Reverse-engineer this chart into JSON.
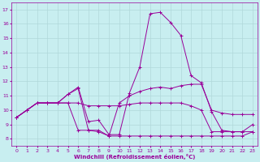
{
  "xlabel": "Windchill (Refroidissement éolien,°C)",
  "bg_color": "#c8eef0",
  "line_color": "#990099",
  "grid_color": "#b0d8da",
  "xlim": [
    -0.5,
    23.5
  ],
  "ylim": [
    7.5,
    17.5
  ],
  "xticks": [
    0,
    1,
    2,
    3,
    4,
    5,
    6,
    7,
    8,
    9,
    10,
    11,
    12,
    13,
    14,
    15,
    16,
    17,
    18,
    19,
    20,
    21,
    22,
    23
  ],
  "yticks": [
    8,
    9,
    10,
    11,
    12,
    13,
    14,
    15,
    16,
    17
  ],
  "series": [
    [
      9.5,
      10.0,
      10.5,
      10.5,
      10.5,
      11.1,
      11.6,
      9.2,
      9.3,
      8.3,
      8.3,
      11.2,
      13.0,
      16.7,
      16.8,
      16.1,
      15.2,
      12.4,
      11.9,
      9.9,
      8.6,
      8.5,
      8.5,
      9.0
    ],
    [
      9.5,
      10.0,
      10.5,
      10.5,
      10.5,
      11.1,
      11.5,
      8.6,
      8.6,
      8.2,
      10.5,
      11.0,
      11.3,
      11.5,
      11.6,
      11.5,
      11.7,
      11.8,
      11.8,
      10.0,
      9.8,
      9.7,
      9.7,
      9.7
    ],
    [
      9.5,
      10.0,
      10.5,
      10.5,
      10.5,
      10.5,
      10.5,
      10.3,
      10.3,
      10.3,
      10.3,
      10.4,
      10.5,
      10.5,
      10.5,
      10.5,
      10.5,
      10.3,
      10.0,
      8.5,
      8.5,
      8.5,
      8.5,
      8.5
    ],
    [
      9.5,
      10.0,
      10.5,
      10.5,
      10.5,
      10.5,
      8.6,
      8.6,
      8.5,
      8.2,
      8.2,
      8.2,
      8.2,
      8.2,
      8.2,
      8.2,
      8.2,
      8.2,
      8.2,
      8.2,
      8.2,
      8.2,
      8.2,
      8.5
    ]
  ]
}
